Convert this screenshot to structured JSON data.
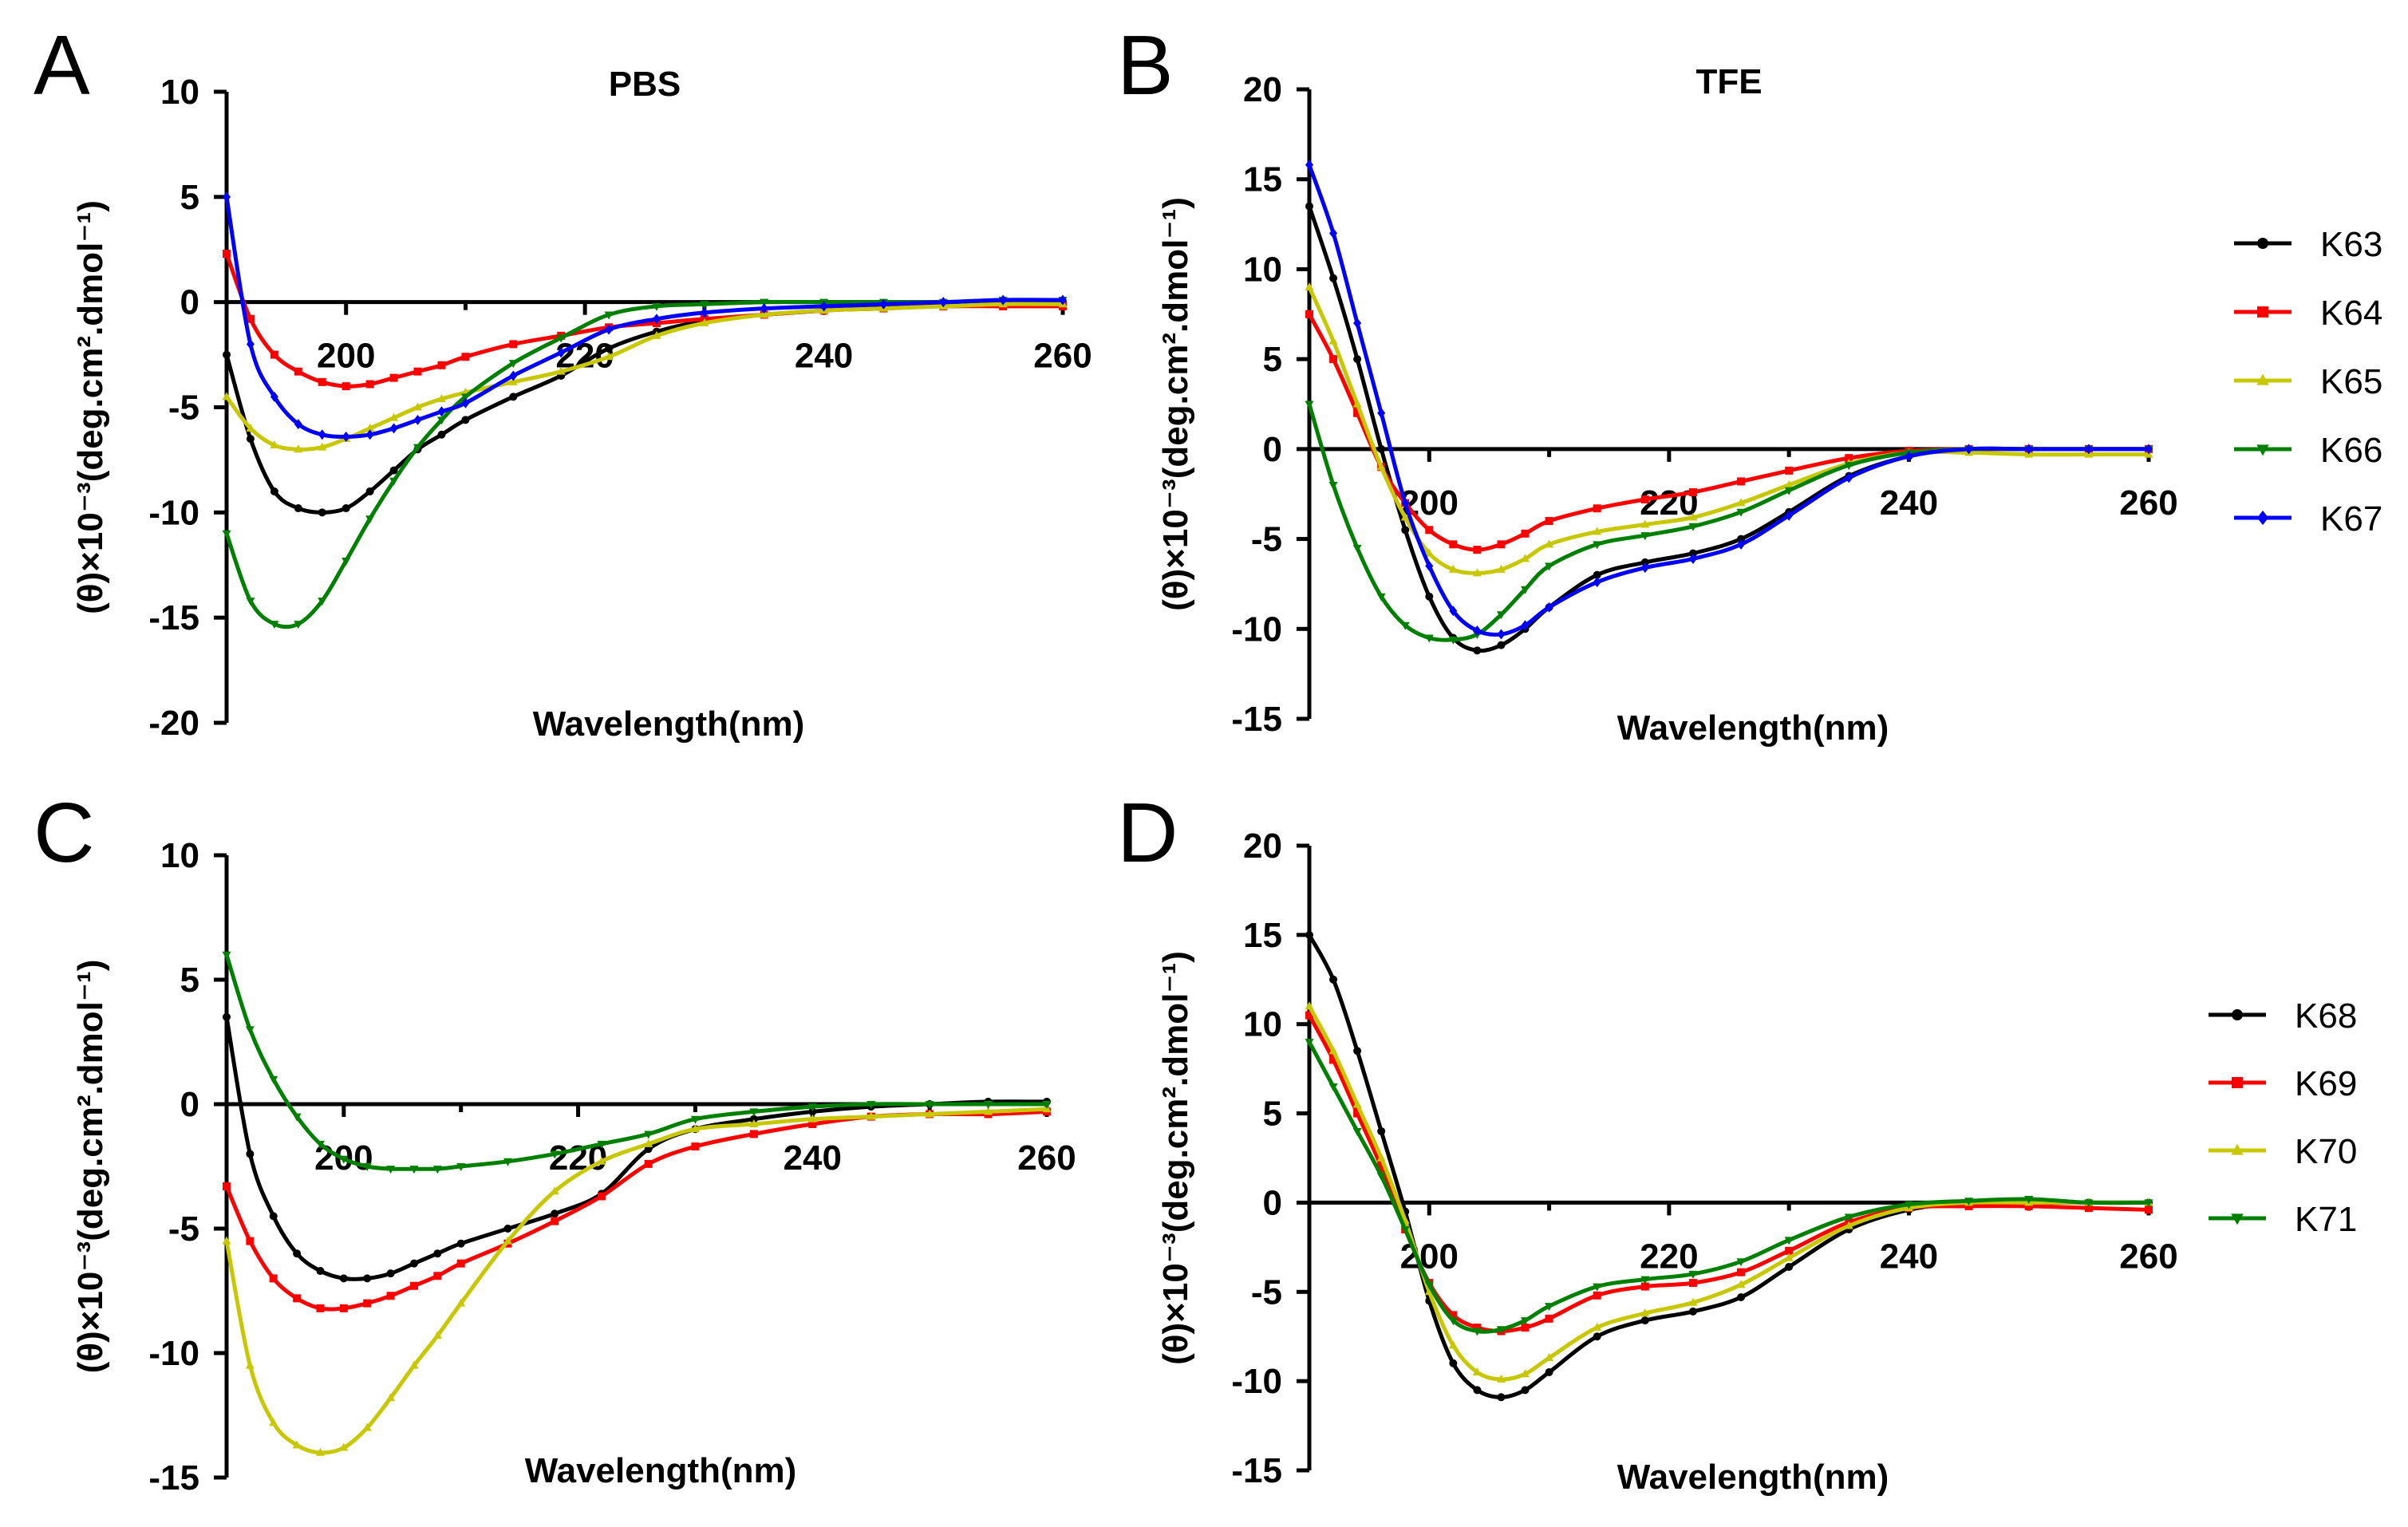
{
  "figure": {
    "description_panels": [
      "A",
      "B",
      "C",
      "D"
    ]
  },
  "chart_data": [
    {
      "panel": "A",
      "type": "line",
      "title": "PBS",
      "xlabel": "Wavelength(nm)",
      "ylabel": "(θ)×10⁻³(deg.cm².dmol⁻¹)",
      "xlim": [
        190,
        260
      ],
      "ylim": [
        -20,
        10
      ],
      "xticks": [
        200,
        220,
        240,
        260
      ],
      "yticks": [
        10,
        5,
        0,
        -5,
        -10,
        -15,
        -20
      ],
      "x": [
        190,
        192,
        194,
        196,
        198,
        200,
        202,
        204,
        206,
        208,
        210,
        214,
        218,
        222,
        226,
        230,
        235,
        240,
        245,
        250,
        255,
        260
      ],
      "series": [
        {
          "name": "K63",
          "color": "#000000",
          "marker": "circle",
          "values": [
            -2.5,
            -6.5,
            -9.0,
            -9.8,
            -10.0,
            -9.8,
            -9.0,
            -8.0,
            -7.0,
            -6.3,
            -5.6,
            -4.5,
            -3.5,
            -2.2,
            -1.4,
            -0.9,
            -0.6,
            -0.4,
            -0.2,
            -0.1,
            0.0,
            0.0
          ]
        },
        {
          "name": "K64",
          "color": "#ff0000",
          "marker": "square",
          "values": [
            2.3,
            -0.8,
            -2.5,
            -3.3,
            -3.8,
            -4.0,
            -3.9,
            -3.6,
            -3.3,
            -3.0,
            -2.6,
            -2.0,
            -1.6,
            -1.2,
            -1.0,
            -0.8,
            -0.6,
            -0.4,
            -0.3,
            -0.2,
            -0.2,
            -0.2
          ]
        },
        {
          "name": "K65",
          "color": "#c8c800",
          "marker": "triangle-up",
          "values": [
            -4.5,
            -6.0,
            -6.8,
            -7.0,
            -6.9,
            -6.5,
            -6.0,
            -5.5,
            -5.0,
            -4.6,
            -4.3,
            -3.8,
            -3.3,
            -2.6,
            -1.6,
            -1.0,
            -0.6,
            -0.4,
            -0.3,
            -0.2,
            -0.1,
            -0.1
          ]
        },
        {
          "name": "K66",
          "color": "#008000",
          "marker": "triangle-down",
          "values": [
            -11.0,
            -14.2,
            -15.3,
            -15.3,
            -14.2,
            -12.3,
            -10.3,
            -8.5,
            -6.9,
            -5.6,
            -4.5,
            -2.9,
            -1.7,
            -0.6,
            -0.2,
            -0.1,
            0.0,
            0.0,
            0.0,
            0.0,
            0.1,
            0.1
          ]
        },
        {
          "name": "K67",
          "color": "#0000ff",
          "marker": "diamond",
          "values": [
            5.0,
            -2.0,
            -4.5,
            -5.8,
            -6.3,
            -6.4,
            -6.3,
            -6.0,
            -5.6,
            -5.2,
            -4.8,
            -3.5,
            -2.4,
            -1.3,
            -0.8,
            -0.5,
            -0.3,
            -0.2,
            -0.1,
            0.0,
            0.1,
            0.1
          ]
        }
      ]
    },
    {
      "panel": "B",
      "type": "line",
      "title": "TFE",
      "xlabel": "Wavelength(nm)",
      "ylabel": "(θ)×10⁻³(deg.cm².dmol⁻¹)",
      "xlim": [
        190,
        260
      ],
      "ylim": [
        -15,
        20
      ],
      "xticks": [
        200,
        220,
        240,
        260
      ],
      "yticks": [
        20,
        15,
        10,
        5,
        0,
        -5,
        -10,
        -15
      ],
      "x": [
        190,
        192,
        194,
        196,
        198,
        200,
        202,
        204,
        206,
        208,
        210,
        214,
        218,
        222,
        226,
        230,
        235,
        240,
        245,
        250,
        255,
        260
      ],
      "series": [
        {
          "name": "K63",
          "color": "#000000",
          "marker": "circle",
          "values": [
            13.5,
            9.5,
            5.0,
            0.0,
            -4.5,
            -8.2,
            -10.5,
            -11.2,
            -10.9,
            -10.0,
            -8.8,
            -7.0,
            -6.3,
            -5.8,
            -5.0,
            -3.5,
            -1.5,
            -0.4,
            0.0,
            0.0,
            0.0,
            0.0
          ]
        },
        {
          "name": "K64",
          "color": "#ff0000",
          "marker": "square",
          "values": [
            7.5,
            5.0,
            2.0,
            -1.0,
            -3.0,
            -4.5,
            -5.3,
            -5.6,
            -5.3,
            -4.7,
            -4.0,
            -3.3,
            -2.8,
            -2.4,
            -1.8,
            -1.2,
            -0.5,
            -0.1,
            0.0,
            0.0,
            0.0,
            0.0
          ]
        },
        {
          "name": "K65",
          "color": "#c8c800",
          "marker": "triangle-up",
          "values": [
            9.0,
            6.0,
            2.5,
            -1.0,
            -3.8,
            -5.8,
            -6.7,
            -6.9,
            -6.7,
            -6.1,
            -5.3,
            -4.6,
            -4.2,
            -3.8,
            -3.0,
            -2.0,
            -0.8,
            -0.2,
            -0.2,
            -0.3,
            -0.3,
            -0.3
          ]
        },
        {
          "name": "K66",
          "color": "#008000",
          "marker": "triangle-down",
          "values": [
            2.5,
            -2.0,
            -5.5,
            -8.2,
            -9.8,
            -10.5,
            -10.6,
            -10.3,
            -9.2,
            -7.8,
            -6.5,
            -5.3,
            -4.8,
            -4.3,
            -3.5,
            -2.3,
            -0.9,
            -0.2,
            0.0,
            0.0,
            0.0,
            0.0
          ]
        },
        {
          "name": "K67",
          "color": "#0000ff",
          "marker": "diamond",
          "values": [
            15.8,
            12.0,
            7.0,
            2.0,
            -3.0,
            -6.5,
            -9.0,
            -10.1,
            -10.3,
            -9.8,
            -8.8,
            -7.4,
            -6.6,
            -6.1,
            -5.3,
            -3.7,
            -1.6,
            -0.4,
            0.0,
            0.0,
            0.0,
            0.0
          ]
        }
      ],
      "legend": [
        "K63",
        "K64",
        "K65",
        "K66",
        "K67"
      ]
    },
    {
      "panel": "C",
      "type": "line",
      "title": "",
      "xlabel": "Wavelength(nm)",
      "ylabel": "(θ)×10⁻³(deg.cm².dmol⁻¹)",
      "xlim": [
        190,
        260
      ],
      "ylim": [
        -15,
        10
      ],
      "xticks": [
        200,
        220,
        240,
        260
      ],
      "yticks": [
        10,
        5,
        0,
        -5,
        -10,
        -15
      ],
      "x": [
        190,
        192,
        194,
        196,
        198,
        200,
        202,
        204,
        206,
        208,
        210,
        214,
        218,
        222,
        226,
        230,
        235,
        240,
        245,
        250,
        255,
        260
      ],
      "series": [
        {
          "name": "K68",
          "color": "#000000",
          "marker": "circle",
          "values": [
            3.5,
            -2.0,
            -4.5,
            -6.0,
            -6.7,
            -7.0,
            -7.0,
            -6.8,
            -6.4,
            -6.0,
            -5.6,
            -5.0,
            -4.4,
            -3.6,
            -1.8,
            -1.0,
            -0.6,
            -0.3,
            -0.1,
            0.0,
            0.1,
            0.1
          ]
        },
        {
          "name": "K69",
          "color": "#ff0000",
          "marker": "square",
          "values": [
            -3.3,
            -5.5,
            -7.0,
            -7.8,
            -8.2,
            -8.2,
            -8.0,
            -7.7,
            -7.3,
            -6.9,
            -6.4,
            -5.6,
            -4.7,
            -3.7,
            -2.4,
            -1.7,
            -1.2,
            -0.8,
            -0.5,
            -0.4,
            -0.4,
            -0.3
          ]
        },
        {
          "name": "K70",
          "color": "#c8c800",
          "marker": "triangle-up",
          "values": [
            -5.5,
            -10.5,
            -12.8,
            -13.7,
            -14.0,
            -13.8,
            -13.0,
            -11.8,
            -10.5,
            -9.3,
            -8.0,
            -5.5,
            -3.5,
            -2.3,
            -1.6,
            -1.0,
            -0.8,
            -0.6,
            -0.5,
            -0.4,
            -0.3,
            -0.2
          ]
        },
        {
          "name": "K71",
          "color": "#008000",
          "marker": "triangle-down",
          "values": [
            6.0,
            3.0,
            1.0,
            -0.5,
            -1.6,
            -2.2,
            -2.5,
            -2.6,
            -2.6,
            -2.6,
            -2.5,
            -2.3,
            -2.0,
            -1.6,
            -1.2,
            -0.6,
            -0.3,
            -0.1,
            0.0,
            0.0,
            0.0,
            0.0
          ]
        }
      ],
      "legend": [
        "K68",
        "K69",
        "K70",
        "K71"
      ]
    },
    {
      "panel": "D",
      "type": "line",
      "title": "",
      "xlabel": "Wavelength(nm)",
      "ylabel": "(θ)×10⁻³(deg.cm².dmol⁻¹)",
      "xlim": [
        190,
        260
      ],
      "ylim": [
        -15,
        20
      ],
      "xticks": [
        200,
        220,
        240,
        260
      ],
      "yticks": [
        20,
        15,
        10,
        5,
        0,
        -5,
        -10,
        -15
      ],
      "x": [
        190,
        192,
        194,
        196,
        198,
        200,
        202,
        204,
        206,
        208,
        210,
        214,
        218,
        222,
        226,
        230,
        235,
        240,
        245,
        250,
        255,
        260
      ],
      "series": [
        {
          "name": "K68",
          "color": "#000000",
          "marker": "circle",
          "values": [
            15.0,
            12.5,
            8.5,
            4.0,
            -0.5,
            -5.5,
            -9.0,
            -10.5,
            -10.9,
            -10.5,
            -9.5,
            -7.5,
            -6.6,
            -6.1,
            -5.3,
            -3.6,
            -1.5,
            -0.4,
            0.0,
            0.0,
            0.0,
            0.0
          ]
        },
        {
          "name": "K69",
          "color": "#ff0000",
          "marker": "square",
          "values": [
            10.5,
            8.0,
            5.0,
            2.0,
            -1.5,
            -4.5,
            -6.3,
            -7.0,
            -7.2,
            -7.0,
            -6.5,
            -5.2,
            -4.7,
            -4.5,
            -3.9,
            -2.7,
            -1.1,
            -0.3,
            -0.2,
            -0.2,
            -0.3,
            -0.4
          ]
        },
        {
          "name": "K70",
          "color": "#c8c800",
          "marker": "triangle-up",
          "values": [
            11.0,
            8.5,
            5.5,
            2.5,
            -1.0,
            -5.0,
            -8.0,
            -9.5,
            -9.9,
            -9.6,
            -8.7,
            -7.0,
            -6.2,
            -5.6,
            -4.6,
            -3.1,
            -1.3,
            -0.3,
            0.0,
            0.0,
            0.0,
            0.0
          ]
        },
        {
          "name": "K71",
          "color": "#008000",
          "marker": "triangle-down",
          "values": [
            9.0,
            6.5,
            4.0,
            1.5,
            -1.5,
            -4.6,
            -6.6,
            -7.2,
            -7.1,
            -6.6,
            -5.8,
            -4.7,
            -4.3,
            -4.0,
            -3.3,
            -2.1,
            -0.8,
            -0.1,
            0.1,
            0.2,
            0.0,
            0.0
          ]
        }
      ]
    }
  ]
}
